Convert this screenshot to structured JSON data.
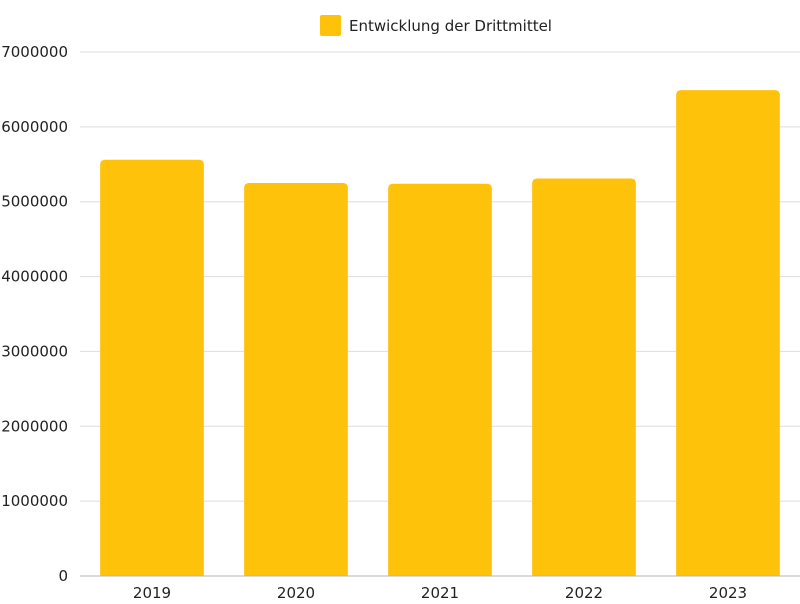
{
  "chart_data": {
    "type": "bar",
    "categories": [
      "2019",
      "2020",
      "2021",
      "2022",
      "2023"
    ],
    "series": [
      {
        "name": "Entwicklung der Drittmittel",
        "values": [
          5560000,
          5250000,
          5240000,
          5310000,
          6490000
        ],
        "color": "#FFC20A"
      }
    ],
    "ylim": [
      0,
      7000000
    ],
    "yticks": [
      "0",
      "1000000",
      "2000000",
      "3000000",
      "4000000",
      "5000000",
      "6000000",
      "7000000"
    ],
    "grid": true,
    "legend": "top-center"
  }
}
